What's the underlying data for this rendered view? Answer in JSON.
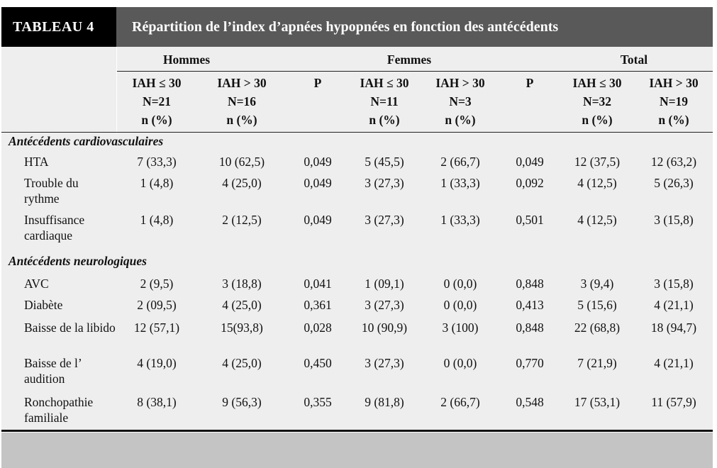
{
  "table": {
    "tag": "TABLEAU 4",
    "title": "Répartition de l’index d’apnées hypopnées en fonction des antécédents",
    "groups": [
      "Hommes",
      "Femmes",
      "Total"
    ],
    "columns": [
      [
        "IAH ≤ 30",
        "N=21",
        "n (%)"
      ],
      [
        "IAH > 30",
        "N=16",
        "n (%)"
      ],
      [
        "P"
      ],
      [
        "IAH ≤ 30",
        "N=11",
        "n (%)"
      ],
      [
        "IAH  > 30",
        "N=3",
        "n (%)"
      ],
      [
        "P"
      ],
      [
        "IAH ≤ 30",
        "N=32",
        "n (%)"
      ],
      [
        "IAH > 30",
        "N=19",
        "n (%)"
      ]
    ],
    "section1": "Antécédents cardiovasculaires",
    "section2": "Antécédents neurologiques",
    "rows": [
      {
        "label": "HTA",
        "values": [
          "7 (33,3)",
          "10 (62,5)",
          "0,049",
          "5 (45,5)",
          "2 (66,7)",
          "0,049",
          "12 (37,5)",
          "12 (63,2)"
        ]
      },
      {
        "label": "Trouble du rythme",
        "values": [
          "1 (4,8)",
          "4 (25,0)",
          "0,049",
          "3 (27,3)",
          "1 (33,3)",
          "0,092",
          "4 (12,5)",
          "5 (26,3)"
        ]
      },
      {
        "label": "Insuffisance cardiaque",
        "values": [
          "1 (4,8)",
          "2 (12,5)",
          "0,049",
          "3 (27,3)",
          "1 (33,3)",
          "0,501",
          "4 (12,5)",
          "3 (15,8)"
        ]
      },
      {
        "label": "AVC",
        "values": [
          "2 (9,5)",
          "3 (18,8)",
          "0,041",
          "1 (09,1)",
          "0 (0,0)",
          "0,848",
          "3 (9,4)",
          "3 (15,8)"
        ]
      },
      {
        "label": "Diabète",
        "values": [
          "2 (09,5)",
          "4 (25,0)",
          "0,361",
          "3 (27,3)",
          "0 (0,0)",
          "0,413",
          "5 (15,6)",
          "4 (21,1)"
        ]
      },
      {
        "label": "Baisse de la libido",
        "values": [
          "12 (57,1)",
          "15(93,8)",
          "0,028",
          "10 (90,9)",
          "3 (100)",
          "0,848",
          "22 (68,8)",
          "18 (94,7)"
        ]
      },
      {
        "label": "Baisse de l’ audition",
        "values": [
          "4 (19,0)",
          "4 (25,0)",
          "0,450",
          "3 (27,3)",
          "0 (0,0)",
          "0,770",
          "7 (21,9)",
          "4 (21,1)"
        ]
      },
      {
        "label": "Ronchopathie familiale",
        "values": [
          "8 (38,1)",
          "9 (56,3)",
          "0,355",
          "9 (81,8)",
          "2 (66,7)",
          "0,548",
          "17 (53,1)",
          "11 (57,9)"
        ]
      }
    ]
  }
}
